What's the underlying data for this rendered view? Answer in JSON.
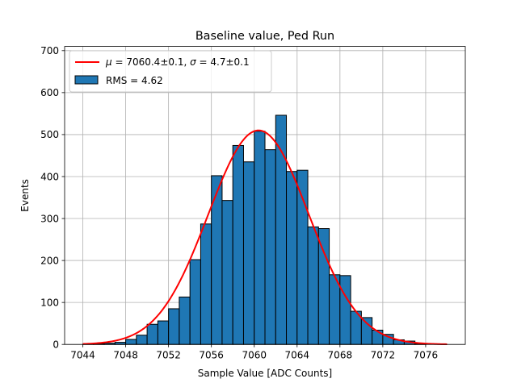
{
  "chart_data": {
    "type": "bar",
    "title": "Baseline value, Ped Run",
    "xlabel": "Sample Value [ADC Counts]",
    "ylabel": "Events",
    "xlim": [
      7042.3,
      7079.7
    ],
    "ylim": [
      0,
      710
    ],
    "x_ticks": [
      7044,
      7048,
      7052,
      7056,
      7060,
      7064,
      7068,
      7072,
      7076
    ],
    "y_ticks": [
      0,
      100,
      200,
      300,
      400,
      500,
      600,
      700
    ],
    "grid": true,
    "legend_position": "top-left",
    "histogram": {
      "name": "RMS = 4.62",
      "color": "#1f77b4",
      "edge_color": "#000000",
      "bin_edges": [
        7044,
        7045,
        7046,
        7047,
        7048,
        7049,
        7050,
        7051,
        7052,
        7053,
        7054,
        7055,
        7056,
        7057,
        7058,
        7059,
        7060,
        7061,
        7062,
        7063,
        7064,
        7065,
        7066,
        7067,
        7068,
        7069,
        7070,
        7071,
        7072,
        7073,
        7074,
        7075,
        7076
      ],
      "counts": [
        1,
        2,
        3,
        5,
        12,
        22,
        48,
        56,
        85,
        113,
        202,
        287,
        402,
        343,
        474,
        435,
        508,
        464,
        546,
        412,
        415,
        280,
        276,
        166,
        164,
        79,
        64,
        34,
        24,
        11,
        8,
        2
      ]
    },
    "fit": {
      "name_parts": [
        "μ",
        " = 7060.4±0.1, ",
        "σ",
        " = 4.7±0.1"
      ],
      "color": "#ff0000",
      "mu": 7060.4,
      "sigma": 4.7,
      "amplitude": 510,
      "x_range": [
        7044,
        7078
      ]
    }
  }
}
